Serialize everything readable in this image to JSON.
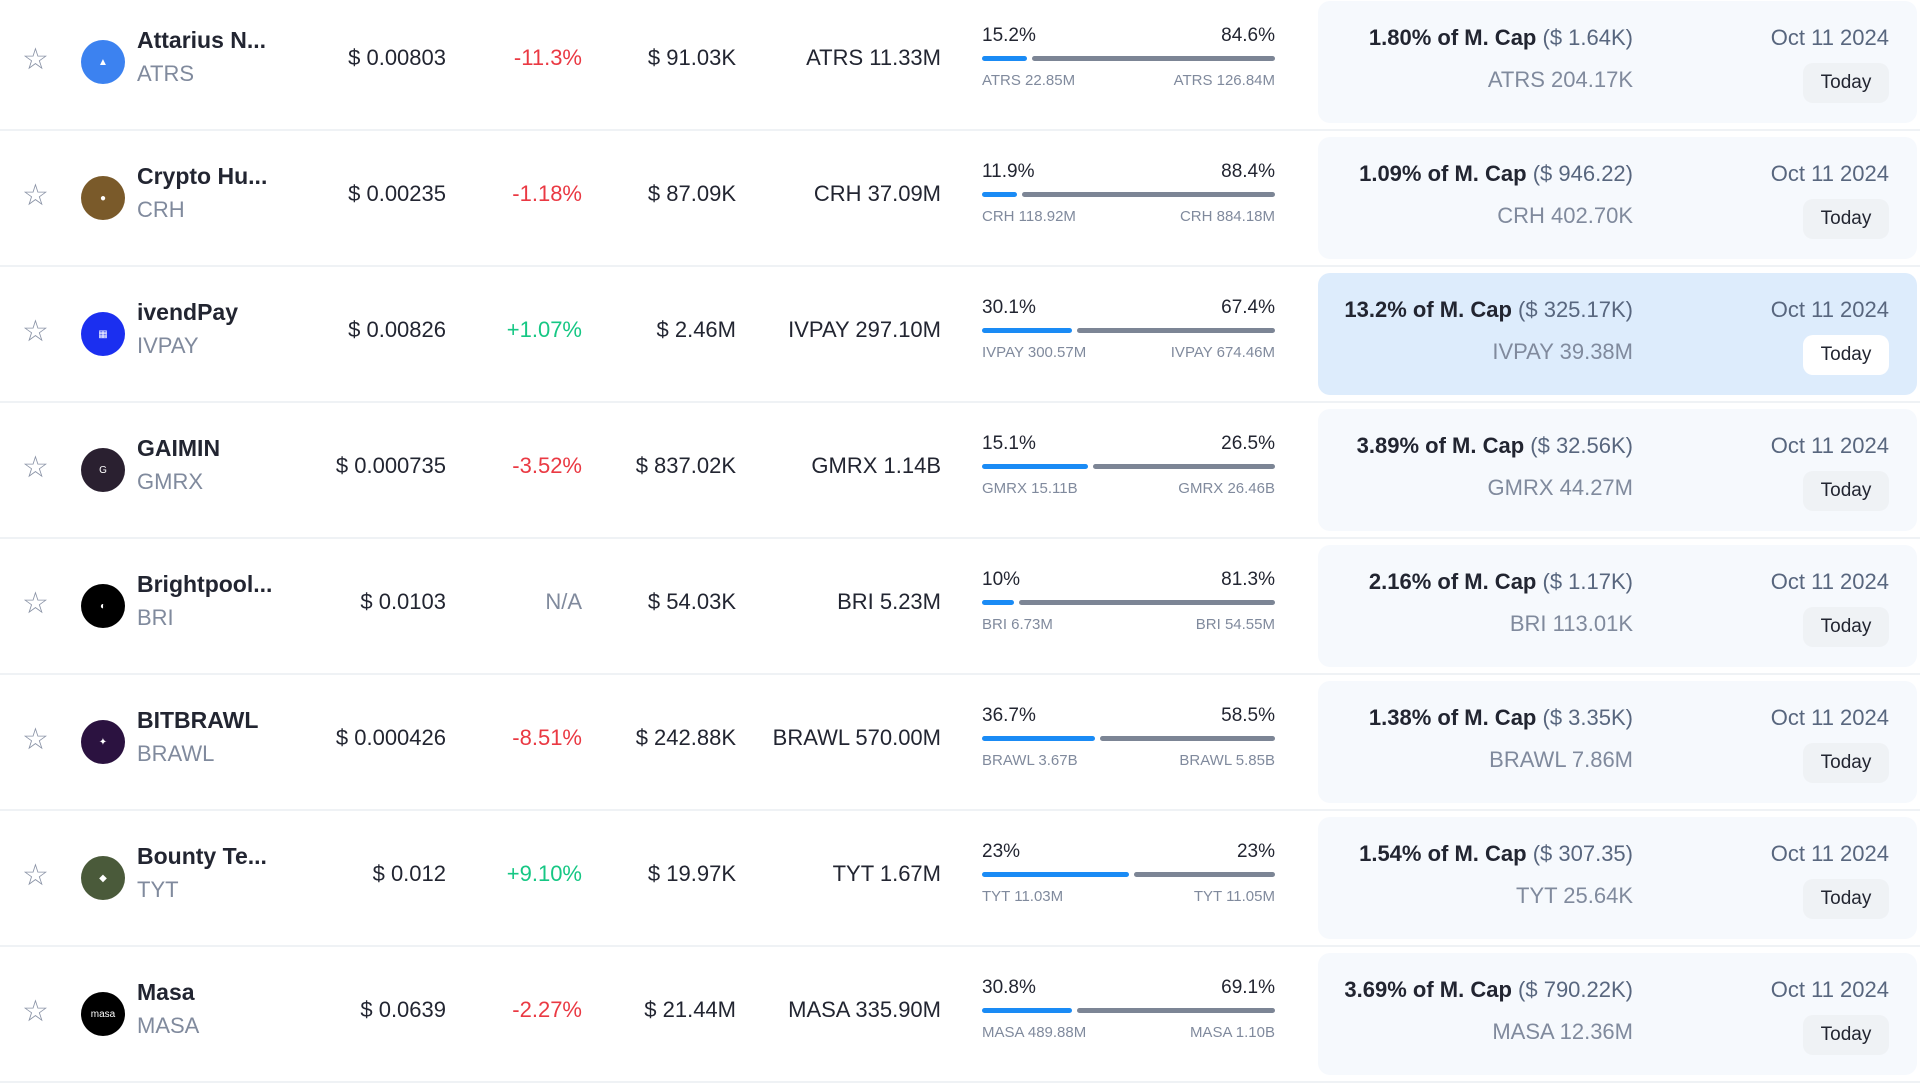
{
  "colors": {
    "blue": "#1a8bf5",
    "negative": "#ea3943",
    "positive": "#16c784",
    "highlight": "#ddecfc"
  },
  "rows": [
    {
      "name": "Attarius N...",
      "symbol": "ATRS",
      "logo_color": "#3c82f0",
      "logo_text": "▲",
      "price": "$ 0.00803",
      "change": "-11.3%",
      "dir": "neg",
      "volume": "$ 91.03K",
      "supply": "ATRS 11.33M",
      "pct_left": "15.2%",
      "pct_right": "84.6%",
      "fill": 15.2,
      "rest": 84.6,
      "amt_left": "ATRS 22.85M",
      "amt_right": "ATRS 126.84M",
      "mcap_pct": "1.80% of M. Cap",
      "mcap_usd": "($ 1.64K)",
      "unlock_amt": "ATRS 204.17K",
      "date": "Oct 11 2024",
      "today": "Today",
      "highlight": false
    },
    {
      "name": "Crypto Hu...",
      "symbol": "CRH",
      "logo_color": "#7a5a2a",
      "logo_text": "●",
      "price": "$ 0.00235",
      "change": "-1.18%",
      "dir": "neg",
      "volume": "$ 87.09K",
      "supply": "CRH 37.09M",
      "pct_left": "11.9%",
      "pct_right": "88.4%",
      "fill": 11.9,
      "rest": 88.4,
      "amt_left": "CRH 118.92M",
      "amt_right": "CRH 884.18M",
      "mcap_pct": "1.09% of M. Cap",
      "mcap_usd": "($ 946.22)",
      "unlock_amt": "CRH 402.70K",
      "date": "Oct 11 2024",
      "today": "Today",
      "highlight": false
    },
    {
      "name": "ivendPay",
      "symbol": "IVPAY",
      "logo_color": "#1b2ff0",
      "logo_text": "▦",
      "price": "$ 0.00826",
      "change": "+1.07%",
      "dir": "pos",
      "volume": "$ 2.46M",
      "supply": "IVPAY 297.10M",
      "pct_left": "30.1%",
      "pct_right": "67.4%",
      "fill": 30.1,
      "rest": 67.4,
      "amt_left": "IVPAY 300.57M",
      "amt_right": "IVPAY 674.46M",
      "mcap_pct": "13.2% of M. Cap",
      "mcap_usd": "($ 325.17K)",
      "unlock_amt": "IVPAY 39.38M",
      "date": "Oct 11 2024",
      "today": "Today",
      "highlight": true
    },
    {
      "name": "GAIMIN",
      "symbol": "GMRX",
      "logo_color": "#2a2030",
      "logo_text": "G",
      "price": "$ 0.000735",
      "change": "-3.52%",
      "dir": "neg",
      "volume": "$ 837.02K",
      "supply": "GMRX 1.14B",
      "pct_left": "15.1%",
      "pct_right": "26.5%",
      "fill": 15.1,
      "rest": 26.5,
      "amt_left": "GMRX 15.11B",
      "amt_right": "GMRX 26.46B",
      "mcap_pct": "3.89% of M. Cap",
      "mcap_usd": "($ 32.56K)",
      "unlock_amt": "GMRX 44.27M",
      "date": "Oct 11 2024",
      "today": "Today",
      "highlight": false
    },
    {
      "name": "Brightpool...",
      "symbol": "BRI",
      "logo_color": "#000000",
      "logo_text": "◐",
      "price": "$ 0.0103",
      "change": "N/A",
      "dir": "na",
      "volume": "$ 54.03K",
      "supply": "BRI 5.23M",
      "pct_left": "10%",
      "pct_right": "81.3%",
      "fill": 10,
      "rest": 81.3,
      "amt_left": "BRI 6.73M",
      "amt_right": "BRI 54.55M",
      "mcap_pct": "2.16% of M. Cap",
      "mcap_usd": "($ 1.17K)",
      "unlock_amt": "BRI 113.01K",
      "date": "Oct 11 2024",
      "today": "Today",
      "highlight": false
    },
    {
      "name": "BITBRAWL",
      "symbol": "BRAWL",
      "logo_color": "#2b1240",
      "logo_text": "✦",
      "price": "$ 0.000426",
      "change": "-8.51%",
      "dir": "neg",
      "volume": "$ 242.88K",
      "supply": "BRAWL 570.00M",
      "pct_left": "36.7%",
      "pct_right": "58.5%",
      "fill": 36.7,
      "rest": 58.5,
      "amt_left": "BRAWL 3.67B",
      "amt_right": "BRAWL 5.85B",
      "mcap_pct": "1.38% of M. Cap",
      "mcap_usd": "($ 3.35K)",
      "unlock_amt": "BRAWL 7.86M",
      "date": "Oct 11 2024",
      "today": "Today",
      "highlight": false
    },
    {
      "name": "Bounty Te...",
      "symbol": "TYT",
      "logo_color": "#4a5a3a",
      "logo_text": "◆",
      "price": "$ 0.012",
      "change": "+9.10%",
      "dir": "pos",
      "volume": "$ 19.97K",
      "supply": "TYT 1.67M",
      "pct_left": "23%",
      "pct_right": "23%",
      "fill": 23,
      "rest": 23,
      "amt_left": "TYT 11.03M",
      "amt_right": "TYT 11.05M",
      "mcap_pct": "1.54% of M. Cap",
      "mcap_usd": "($ 307.35)",
      "unlock_amt": "TYT 25.64K",
      "date": "Oct 11 2024",
      "today": "Today",
      "highlight": false
    },
    {
      "name": "Masa",
      "symbol": "MASA",
      "logo_color": "#000000",
      "logo_text": "masa",
      "price": "$ 0.0639",
      "change": "-2.27%",
      "dir": "neg",
      "volume": "$ 21.44M",
      "supply": "MASA 335.90M",
      "pct_left": "30.8%",
      "pct_right": "69.1%",
      "fill": 30.8,
      "rest": 69.1,
      "amt_left": "MASA 489.88M",
      "amt_right": "MASA 1.10B",
      "mcap_pct": "3.69% of M. Cap",
      "mcap_usd": "($ 790.22K)",
      "unlock_amt": "MASA 12.36M",
      "date": "Oct 11 2024",
      "today": "Today",
      "highlight": false
    }
  ]
}
